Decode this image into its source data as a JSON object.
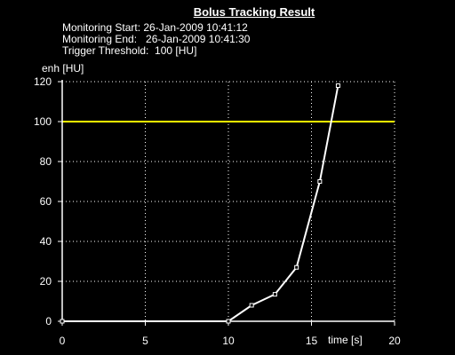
{
  "header": {
    "title": "Bolus Tracking Result",
    "monitoring_start": "Monitoring Start: 26-Jan-2009 10:41:12",
    "monitoring_end": "Monitoring End:   26-Jan-2009 10:41:30",
    "trigger_threshold": "Trigger Threshold:  100 [HU]"
  },
  "chart_data": {
    "type": "line",
    "title": "Bolus Tracking Result",
    "xlabel": "time [s]",
    "ylabel": "enh [HU]",
    "xlim": [
      0,
      20
    ],
    "ylim": [
      0,
      120
    ],
    "xticks": [
      0,
      5,
      10,
      15,
      20
    ],
    "yticks": [
      0,
      20,
      40,
      60,
      80,
      100,
      120
    ],
    "grid": true,
    "threshold": 100,
    "colors": {
      "background": "#000000",
      "series": "#ffffff",
      "threshold": "#ffff00",
      "grid": "#ffffff"
    },
    "series": [
      {
        "x": [
          0,
          10.0,
          11.4,
          12.8,
          14.1,
          15.5,
          16.6
        ],
        "y": [
          0,
          0,
          8,
          13.5,
          27,
          70,
          118
        ]
      }
    ]
  }
}
